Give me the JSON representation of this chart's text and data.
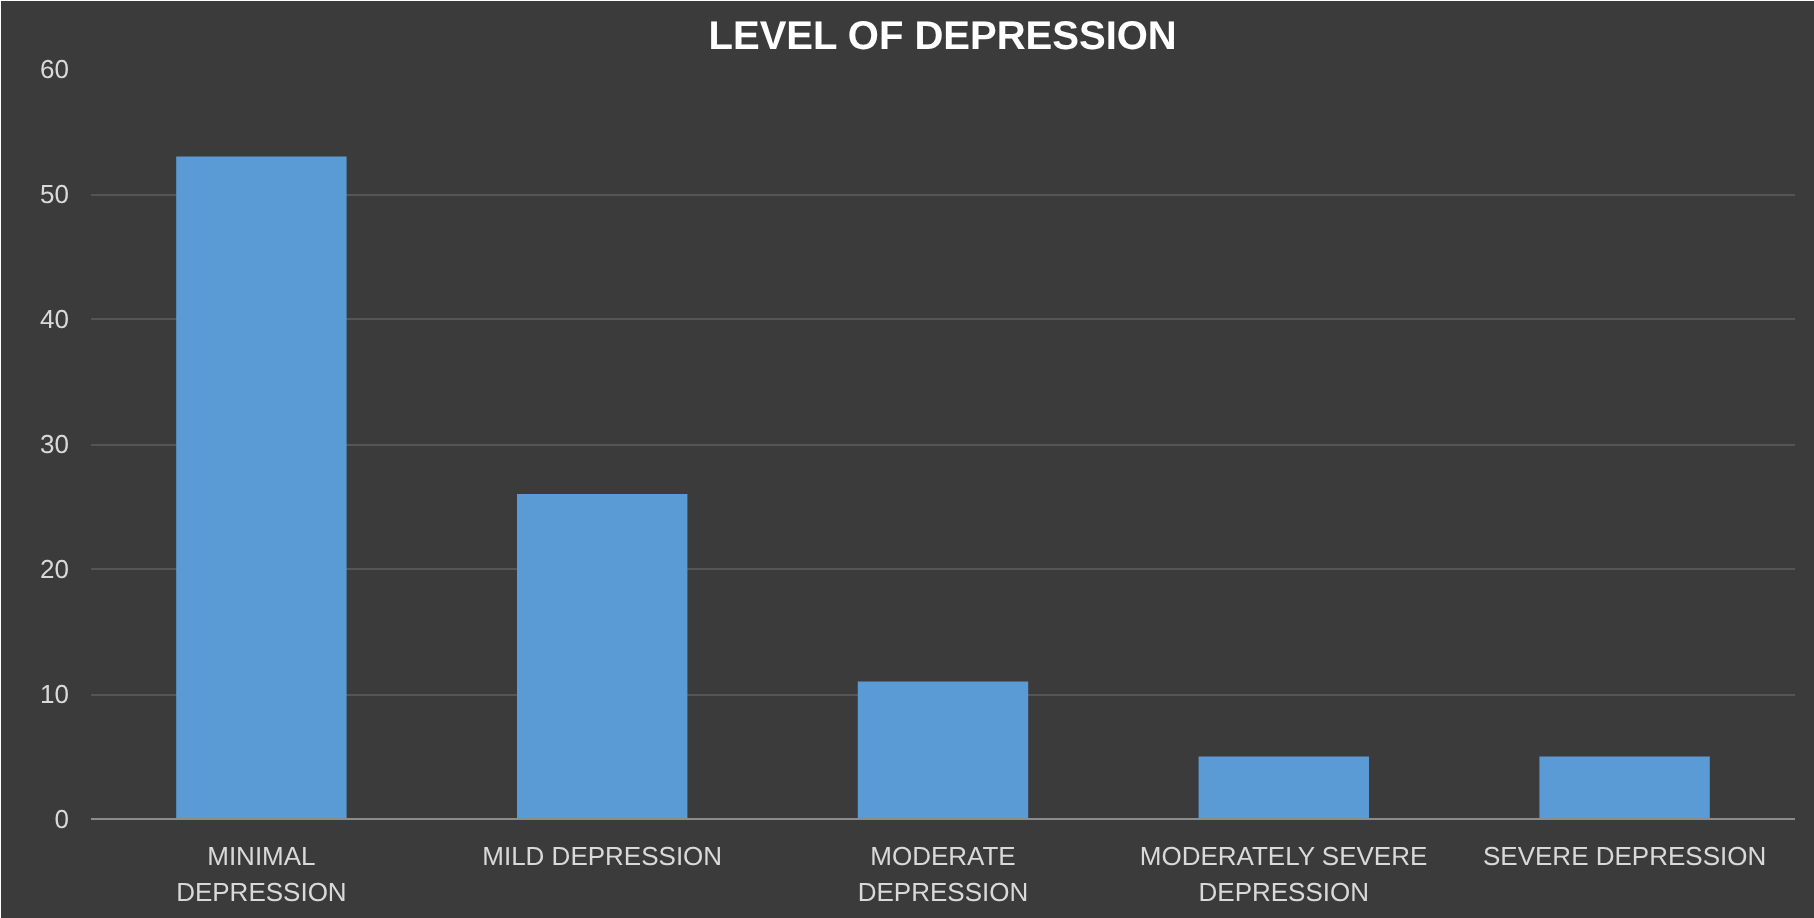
{
  "chart_data": {
    "type": "bar",
    "title": "LEVEL OF DEPRESSION",
    "categories": [
      "MINIMAL DEPRESSION",
      "MILD DEPRESSION",
      "MODERATE DEPRESSION",
      "MODERATELY SEVERE DEPRESSION",
      "SEVERE DEPRESSION"
    ],
    "values": [
      53,
      26,
      11,
      5,
      5
    ],
    "color": "#5b9bd5",
    "ylim": [
      0,
      60
    ],
    "yticks": [
      0,
      10,
      20,
      30,
      40,
      50,
      60
    ],
    "grid": "y"
  }
}
